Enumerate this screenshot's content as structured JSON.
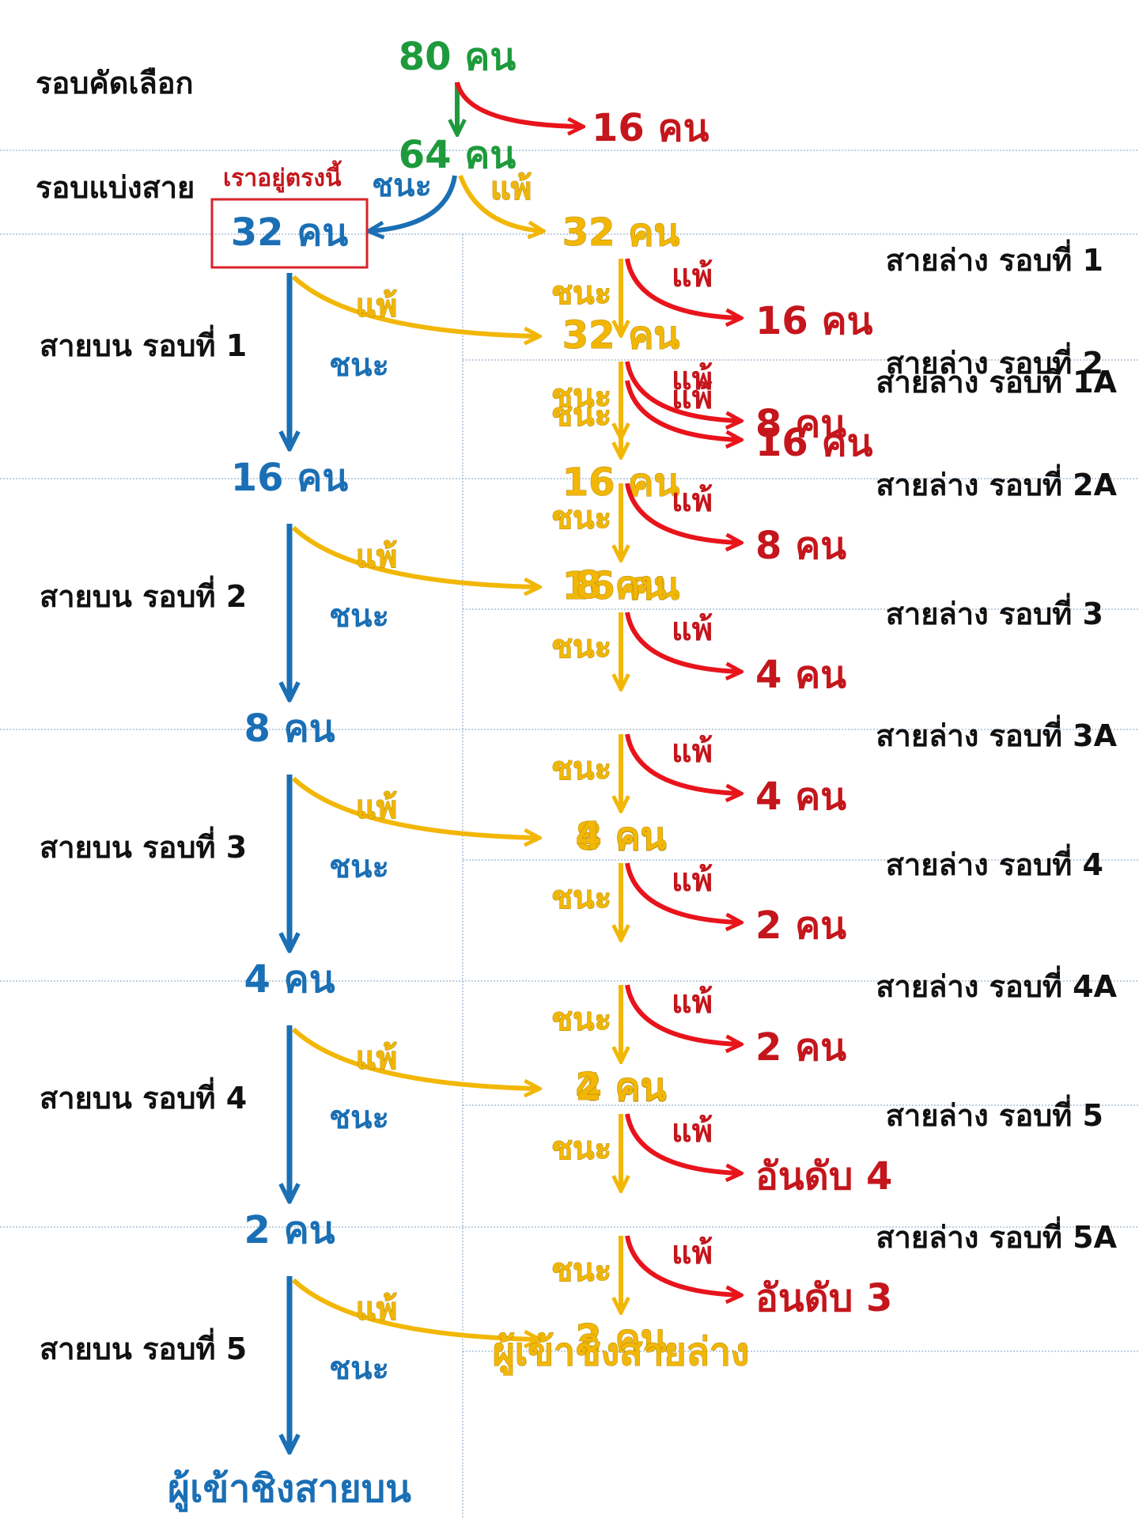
{
  "colors": {
    "upper": "#1a6fb5",
    "lower": "#f2b705",
    "eliminated": "#e8141c",
    "qualifier": "#1e9a3c",
    "highlight_box": "#d9232b",
    "grid": "#7fa0c0"
  },
  "qualifier": {
    "row_label": "รอบคัดเลือก",
    "start": "80 คน",
    "advance": "64 คน",
    "eliminated": "16 คน"
  },
  "division": {
    "row_label": "รอบแบ่งสาย",
    "note": "เราอยู่ตรงนี้",
    "win": "ชนะ",
    "lose": "แพ้",
    "upper_count": "32 คน",
    "lower_count": "32 คน"
  },
  "edge_words": {
    "win": "ชนะ",
    "lose": "แพ้"
  },
  "upper_rounds": [
    {
      "label": "สายบน รอบที่ 1",
      "result": "16 คน",
      "to_lower": "32 คน"
    },
    {
      "label": "สายบน รอบที่ 2",
      "result": "8 คน",
      "to_lower": "16 คน"
    },
    {
      "label": "สายบน รอบที่ 3",
      "result": "4 คน",
      "to_lower": "8 คน"
    },
    {
      "label": "สายบน รอบที่ 4",
      "result": "2 คน",
      "to_lower": "4 คน"
    },
    {
      "label": "สายบน รอบที่ 5",
      "result": "ผู้เข้าชิงสายบน",
      "to_lower": "2 คน"
    }
  ],
  "lower_rounds": [
    {
      "label": "สายล่าง รอบที่ 1",
      "eliminated": "16 คน"
    },
    {
      "label": "สายล่าง รอบที่ 1A",
      "eliminated": "16 คน",
      "result": "16 คน"
    },
    {
      "label": "สายล่าง รอบที่ 2",
      "eliminated": "8 คน"
    },
    {
      "label": "สายล่าง รอบที่ 2A",
      "eliminated": "8 คน",
      "result": "8 คน"
    },
    {
      "label": "สายล่าง รอบที่ 3",
      "eliminated": "4 คน"
    },
    {
      "label": "สายล่าง รอบที่ 3A",
      "eliminated": "4 คน",
      "result": "4 คน"
    },
    {
      "label": "สายล่าง รอบที่ 4",
      "eliminated": "2 คน"
    },
    {
      "label": "สายล่าง รอบที่ 4A",
      "eliminated": "2 คน",
      "result": "2 คน"
    },
    {
      "label": "สายล่าง รอบที่ 5",
      "eliminated": "อันดับ 4"
    },
    {
      "label": "สายล่าง รอบที่ 5A",
      "eliminated": "อันดับ 3",
      "result": "ผู้เข้าชิงสายล่าง"
    }
  ]
}
